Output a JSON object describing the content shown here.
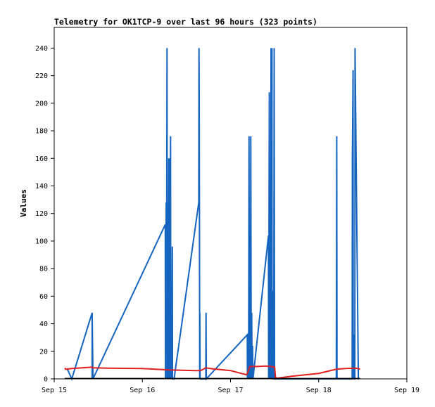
{
  "chart_data": {
    "type": "line",
    "title": "Telemetry for OK1TCP-9 over last 96 hours (323 points)",
    "xlabel": "",
    "ylabel": "Values",
    "xlim": [
      "Sep 15",
      "Sep 19"
    ],
    "ylim": [
      0,
      255
    ],
    "x_tick_labels": [
      "Sep 15",
      "Sep 16",
      "Sep 17",
      "Sep 18",
      "Sep 19"
    ],
    "y_ticks": [
      0,
      20,
      40,
      60,
      80,
      100,
      120,
      140,
      160,
      180,
      200,
      220,
      240
    ],
    "grid": false,
    "legend": "none",
    "series": [
      {
        "color": "#1565c0",
        "x_days": [
          0.15,
          0.2,
          0.43,
          0.43,
          0.43,
          0.44,
          1.26,
          1.262,
          1.27,
          1.272,
          1.28,
          1.282,
          1.29,
          1.292,
          1.3,
          1.302,
          1.31,
          1.312,
          1.32,
          1.322,
          1.33,
          1.332,
          1.34,
          1.342,
          1.35,
          1.36,
          1.64,
          1.642,
          1.645,
          1.648,
          1.65,
          1.652,
          1.655,
          1.66,
          1.72,
          1.722,
          1.725,
          2.19,
          2.192,
          2.2,
          2.205,
          2.21,
          2.215,
          2.22,
          2.225,
          2.23,
          2.235,
          2.24,
          2.245,
          2.25,
          2.255,
          2.43,
          2.432,
          2.44,
          2.442,
          2.45,
          2.452,
          2.46,
          2.462,
          2.47,
          2.472,
          2.48,
          2.482,
          2.49,
          2.495,
          2.5,
          3.2,
          3.202,
          3.205,
          3.208,
          3.21,
          3.38,
          3.382,
          3.39,
          3.392,
          3.4,
          3.402,
          3.41,
          3.412,
          3.45,
          3.452,
          3.455
        ],
        "values": [
          7,
          0,
          48,
          0,
          48,
          0,
          112,
          0,
          128,
          0,
          240,
          0,
          128,
          0,
          160,
          0,
          160,
          0,
          176,
          0,
          64,
          0,
          96,
          0,
          0,
          0,
          128,
          240,
          208,
          104,
          0,
          48,
          0,
          0,
          0,
          48,
          0,
          32,
          0,
          16,
          0,
          176,
          0,
          96,
          0,
          176,
          0,
          48,
          0,
          24,
          0,
          104,
          0,
          208,
          0,
          128,
          0,
          240,
          0,
          240,
          0,
          64,
          0,
          0,
          240,
          0,
          0,
          88,
          176,
          0,
          0,
          0,
          160,
          224,
          0,
          32,
          0,
          0,
          240,
          0,
          0,
          0
        ]
      },
      {
        "color": "#e02020",
        "x_days": [
          0.12,
          0.13,
          0.2,
          0.43,
          0.44,
          0.6,
          1.0,
          1.3,
          1.4,
          1.6,
          1.66,
          1.72,
          1.8,
          2.0,
          2.18,
          2.19,
          2.22,
          2.25,
          2.3,
          2.4,
          2.45,
          2.5,
          2.51,
          2.53,
          2.7,
          3.0,
          3.2,
          3.3,
          3.4,
          3.45,
          3.47
        ],
        "values": [
          8,
          7,
          7.5,
          8.5,
          8,
          7.8,
          7.5,
          6.5,
          6.3,
          6,
          6,
          8,
          7.3,
          6,
          3,
          4,
          9,
          9,
          9,
          9.3,
          9,
          8.5,
          1,
          0.5,
          2,
          4,
          7,
          7.5,
          7.8,
          7.5,
          7
        ]
      },
      {
        "color": "#000000",
        "x_days": [
          0.12,
          3.47
        ],
        "values": [
          0.3,
          0.3
        ]
      }
    ]
  }
}
